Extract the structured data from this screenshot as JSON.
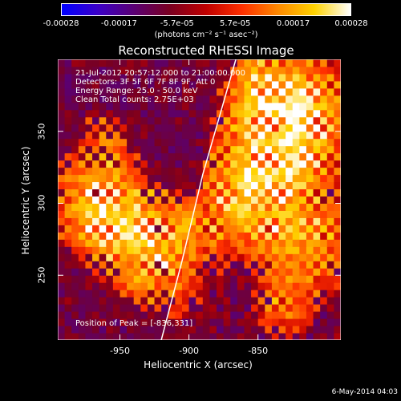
{
  "colorbar": {
    "ticks": [
      "-0.00028",
      "-0.00017",
      "-5.7e-05",
      "5.7e-05",
      "0.00017",
      "0.00028"
    ],
    "units": "(photons cm⁻² s⁻¹ asec⁻²)",
    "colors": [
      "#0000ff",
      "#3b00c8",
      "#5a0073",
      "#7a0020",
      "#c00000",
      "#ff3000",
      "#ff8a00",
      "#ffd200",
      "#ffffff"
    ]
  },
  "chart_data": {
    "type": "heatmap",
    "title": "Reconstructed RHESSI Image",
    "xlabel": "Heliocentric X (arcsec)",
    "ylabel": "Heliocentric Y (arcsec)",
    "xlim": [
      -995,
      -790
    ],
    "ylim": [
      205,
      400
    ],
    "x_ticks": [
      -950,
      -900,
      -850
    ],
    "x_tick_labels": [
      "-950",
      "-900",
      "-850"
    ],
    "y_ticks": [
      250,
      300,
      350
    ],
    "y_tick_labels": [
      "250",
      "300",
      "350"
    ],
    "value_range": [
      -0.00028,
      0.00028
    ],
    "limb_curve": [
      [
        -920,
        205
      ],
      [
        -905,
        260
      ],
      [
        -890,
        320
      ],
      [
        -878,
        360
      ],
      [
        -866,
        400
      ]
    ],
    "peak": [
      -836,
      331
    ],
    "annotations": [
      "21-Jul-2012 20:57:12.000 to 21:00:00.000",
      "Detectors: 3F 5F 6F 7F 8F 9F, Att 0",
      "Energy Range: 25.0 - 50.0 keV",
      "Clean     Total counts: 2.75E+03",
      "Position of Peak = [-836,331]"
    ]
  },
  "timestamp": "6-May-2014 04:03"
}
